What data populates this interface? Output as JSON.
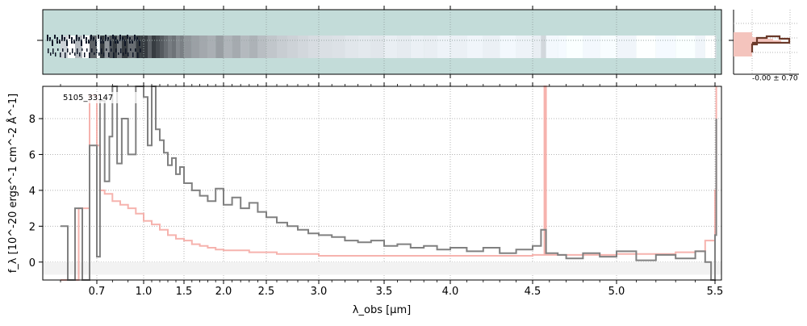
{
  "chart_data": {
    "type": "line",
    "object_label": "5105_33147",
    "xlabel": "λ_obs [μm]",
    "ylabel": "f_λ [10^-20 ergs^-1 cm^-2 Å^-1]",
    "x_ticks": [
      "0.7",
      "1.0",
      "1.5",
      "2.0",
      "2.5",
      "3.0",
      "3.5",
      "4.0",
      "4.5",
      "5.0",
      "5.5"
    ],
    "y_ticks": [
      "0",
      "2",
      "4",
      "6",
      "8"
    ],
    "ylim": [
      -1,
      9.8
    ],
    "grid": true,
    "side_panel_label": "-0.00 ± 0.70",
    "series": [
      {
        "color": "#808080",
        "points": [
          [
            0.6,
            2
          ],
          [
            0.62,
            -1
          ],
          [
            0.64,
            3
          ],
          [
            0.66,
            -1
          ],
          [
            0.68,
            6.5
          ],
          [
            0.7,
            0.3
          ],
          [
            0.72,
            9
          ],
          [
            0.75,
            4.5
          ],
          [
            0.78,
            7
          ],
          [
            0.8,
            9.8
          ],
          [
            0.83,
            5.5
          ],
          [
            0.86,
            8
          ],
          [
            0.9,
            6
          ],
          [
            0.95,
            9.8
          ],
          [
            0.98,
            9.8
          ],
          [
            1.0,
            9.2
          ],
          [
            1.05,
            6.5
          ],
          [
            1.1,
            9.8
          ],
          [
            1.15,
            7.4
          ],
          [
            1.2,
            6.8
          ],
          [
            1.25,
            6.1
          ],
          [
            1.3,
            5.4
          ],
          [
            1.35,
            5.8
          ],
          [
            1.4,
            4.9
          ],
          [
            1.45,
            5.3
          ],
          [
            1.5,
            4.4
          ],
          [
            1.6,
            4.0
          ],
          [
            1.7,
            3.7
          ],
          [
            1.8,
            3.4
          ],
          [
            1.9,
            4.1
          ],
          [
            2.0,
            3.2
          ],
          [
            2.1,
            3.6
          ],
          [
            2.2,
            3.0
          ],
          [
            2.3,
            3.3
          ],
          [
            2.4,
            2.8
          ],
          [
            2.5,
            2.5
          ],
          [
            2.6,
            2.2
          ],
          [
            2.7,
            2.0
          ],
          [
            2.8,
            1.8
          ],
          [
            2.9,
            1.6
          ],
          [
            3.0,
            1.5
          ],
          [
            3.1,
            1.4
          ],
          [
            3.2,
            1.2
          ],
          [
            3.3,
            1.1
          ],
          [
            3.4,
            1.2
          ],
          [
            3.5,
            0.9
          ],
          [
            3.6,
            1.0
          ],
          [
            3.7,
            0.8
          ],
          [
            3.8,
            0.9
          ],
          [
            3.9,
            0.7
          ],
          [
            4.0,
            0.8
          ],
          [
            4.1,
            0.6
          ],
          [
            4.2,
            0.8
          ],
          [
            4.3,
            0.5
          ],
          [
            4.4,
            0.7
          ],
          [
            4.5,
            0.9
          ],
          [
            4.55,
            1.8
          ],
          [
            4.58,
            0.5
          ],
          [
            4.65,
            0.4
          ],
          [
            4.7,
            0.2
          ],
          [
            4.8,
            0.5
          ],
          [
            4.9,
            0.3
          ],
          [
            5.0,
            0.6
          ],
          [
            5.1,
            0.1
          ],
          [
            5.2,
            0.4
          ],
          [
            5.3,
            0.2
          ],
          [
            5.4,
            0.6
          ],
          [
            5.45,
            0.0
          ],
          [
            5.48,
            -1
          ],
          [
            5.5,
            1.5
          ],
          [
            5.52,
            8
          ]
        ]
      },
      {
        "color": "#f4a6a0",
        "points": [
          [
            0.6,
            -1
          ],
          [
            0.65,
            3
          ],
          [
            0.68,
            9.3
          ],
          [
            0.7,
            6.5
          ],
          [
            0.72,
            4.0
          ],
          [
            0.75,
            3.8
          ],
          [
            0.8,
            3.4
          ],
          [
            0.85,
            3.2
          ],
          [
            0.9,
            3.0
          ],
          [
            0.95,
            2.7
          ],
          [
            1.0,
            2.3
          ],
          [
            1.1,
            2.1
          ],
          [
            1.2,
            1.8
          ],
          [
            1.3,
            1.5
          ],
          [
            1.4,
            1.3
          ],
          [
            1.5,
            1.2
          ],
          [
            1.6,
            1.0
          ],
          [
            1.7,
            0.9
          ],
          [
            1.8,
            0.8
          ],
          [
            1.9,
            0.7
          ],
          [
            2.0,
            0.65
          ],
          [
            2.3,
            0.55
          ],
          [
            2.6,
            0.45
          ],
          [
            3.0,
            0.35
          ],
          [
            3.5,
            0.35
          ],
          [
            4.0,
            0.35
          ],
          [
            4.5,
            0.4
          ],
          [
            4.56,
            0.4
          ],
          [
            4.57,
            9.8
          ],
          [
            4.58,
            0.4
          ],
          [
            5.0,
            0.45
          ],
          [
            5.3,
            0.55
          ],
          [
            5.4,
            0.6
          ],
          [
            5.45,
            1.2
          ],
          [
            5.5,
            4
          ],
          [
            5.52,
            9.8
          ]
        ]
      }
    ]
  },
  "colors": {
    "spec_bg": "#c3dcd9",
    "grey_series": "#808080",
    "red_series": "#f4a6a0",
    "dark_line": "#6b3a2a",
    "grid": "#b4b4b4"
  }
}
